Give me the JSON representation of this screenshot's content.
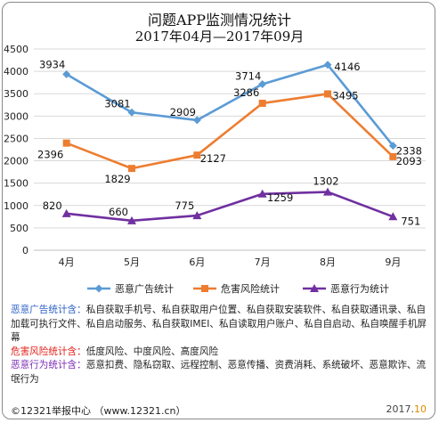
{
  "title_line1": "问题APP监测情况统计",
  "title_line2": "2017年04月—2017年09月",
  "chart_data": {
    "type": "line",
    "categories": [
      "4月",
      "5月",
      "6月",
      "7月",
      "8月",
      "9月"
    ],
    "ylim": [
      0,
      4500
    ],
    "yticks": [
      0,
      500,
      1000,
      1500,
      2000,
      2500,
      3000,
      3500,
      4000,
      4500
    ],
    "grid": true,
    "legend_position": "bottom",
    "series": [
      {
        "name": "恶意广告统计",
        "color": "#5b9bd5",
        "marker": "diamond",
        "values": [
          3934,
          3081,
          2909,
          3714,
          4146,
          2338
        ]
      },
      {
        "name": "危害风险统计",
        "color": "#ed7d31",
        "marker": "square",
        "values": [
          2396,
          1829,
          2127,
          3286,
          3495,
          2093
        ]
      },
      {
        "name": "恶意行为统计",
        "color": "#7030a0",
        "marker": "triangle",
        "values": [
          820,
          660,
          775,
          1259,
          1302,
          751
        ]
      }
    ]
  },
  "notes": {
    "ad_key": "恶意广告统计含：",
    "ad_text": "私自获取手机号、私自获取用户位置、私自获取安装软件、私自获取通讯录、私自加载可执行文件、私自启动服务、私自获取IMEI、私自读取用户账户、私自自启动、私自唤醒手机屏幕",
    "risk_key": "危害风险统计含：",
    "risk_text": "低度风险、中度风险、高度风险",
    "behavior_key": "恶意行为统计含：",
    "behavior_text": "恶意扣费、隐私窃取、远程控制、恶意传播、资费消耗、系统破坏、恶意欺诈、流氓行为"
  },
  "footer": {
    "left": "©12321举报中心 （www.12321.cn）",
    "right_year": "2017.",
    "right_month": "10"
  },
  "colors": {
    "grid": "#d9d9d9",
    "axis_text": "#222222"
  }
}
